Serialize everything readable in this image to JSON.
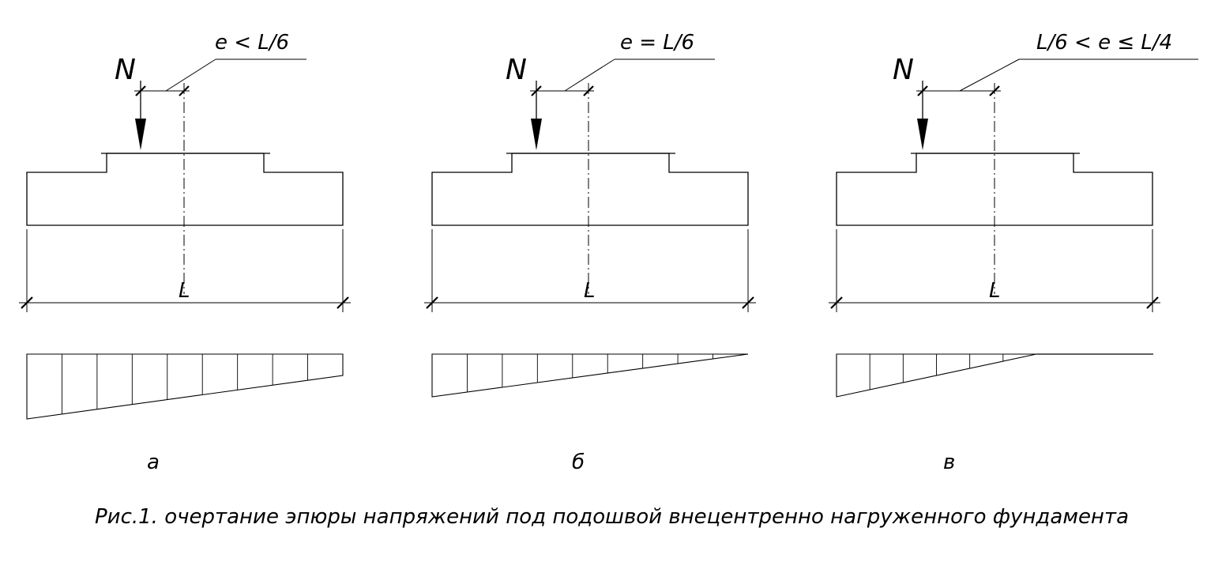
{
  "figures": [
    {
      "id": "a",
      "load_label": "N",
      "ecc_label": "e < L/6",
      "length_label": "L",
      "caption_letter": "а"
    },
    {
      "id": "b",
      "load_label": "N",
      "ecc_label": "e = L/6",
      "length_label": "L",
      "caption_letter": "б"
    },
    {
      "id": "v",
      "load_label": "N",
      "ecc_label": "L/6 < e ≤ L/4",
      "length_label": "L",
      "caption_letter": "в"
    }
  ],
  "caption": "Рис.1. очертание эпюры напряжений под подошвой внецентренно нагруженного фундамента"
}
